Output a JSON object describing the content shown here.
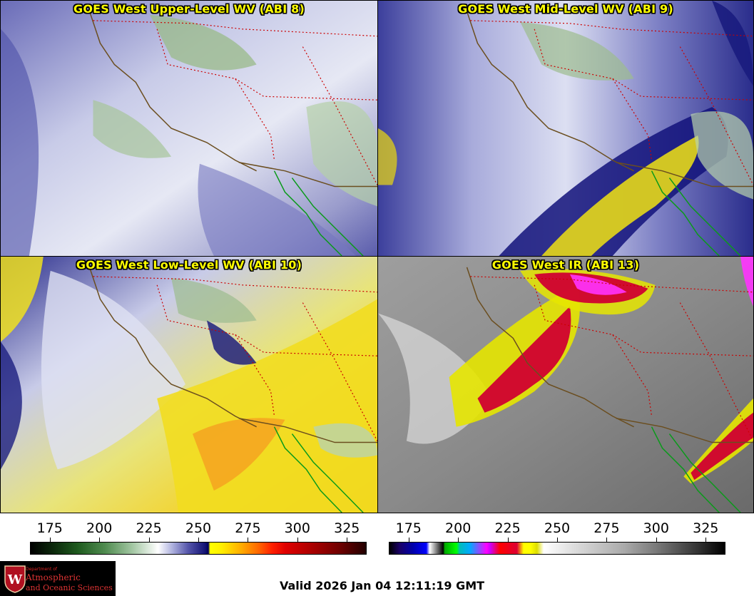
{
  "panels": [
    {
      "id": "p1",
      "title": "GOES West Upper-Level WV (ABI 8)"
    },
    {
      "id": "p2",
      "title": "GOES West Mid-Level WV (ABI 9)"
    },
    {
      "id": "p3",
      "title": "GOES West Low-Level WV (ABI 10)"
    },
    {
      "id": "p4",
      "title": "GOES West IR (ABI 13)"
    }
  ],
  "colorbar_wv": {
    "ticks": [
      "175",
      "200",
      "225",
      "250",
      "275",
      "300",
      "325"
    ],
    "range": [
      165,
      335
    ]
  },
  "colorbar_ir": {
    "ticks": [
      "175",
      "200",
      "225",
      "250",
      "275",
      "300",
      "325"
    ],
    "range": [
      165,
      335
    ]
  },
  "logo": {
    "dept": "Department of",
    "line1": "Atmospheric",
    "line2": "and Oceanic Sciences"
  },
  "valid_time": "Valid 2026 Jan 04 12:11:19 GMT",
  "colors": {
    "title": "#ffff00",
    "state_border": "#cc0000",
    "coast": "#6b4e1f",
    "mexico_coast": "#0a9a1a"
  }
}
